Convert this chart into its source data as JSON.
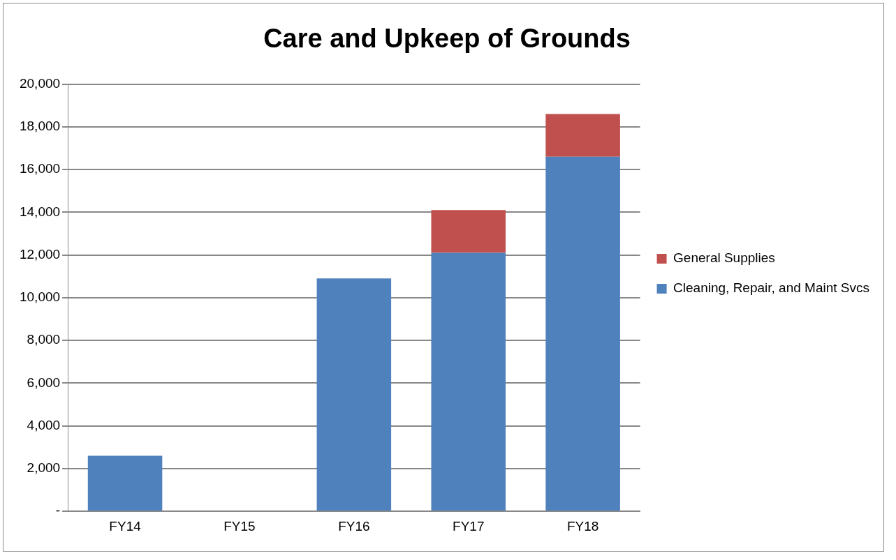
{
  "chart_data": {
    "type": "bar",
    "title": "Care and Upkeep of Grounds",
    "categories": [
      "FY14",
      "FY15",
      "FY16",
      "FY17",
      "FY18"
    ],
    "stacked": true,
    "series": [
      {
        "name": "Cleaning, Repair, and Maint Svcs",
        "color": "#4f81bd",
        "values": [
          2600,
          0,
          10900,
          12100,
          16600
        ]
      },
      {
        "name": "General Supplies",
        "color": "#c0504d",
        "values": [
          0,
          0,
          0,
          2000,
          2000
        ]
      }
    ],
    "ylim": [
      0,
      20000
    ],
    "yticks": [
      {
        "value": 0,
        "label": "-"
      },
      {
        "value": 2000,
        "label": "2,000"
      },
      {
        "value": 4000,
        "label": "4,000"
      },
      {
        "value": 6000,
        "label": "6,000"
      },
      {
        "value": 8000,
        "label": "8,000"
      },
      {
        "value": 10000,
        "label": "10,000"
      },
      {
        "value": 12000,
        "label": "12,000"
      },
      {
        "value": 14000,
        "label": "14,000"
      },
      {
        "value": 16000,
        "label": "16,000"
      },
      {
        "value": 18000,
        "label": "18,000"
      },
      {
        "value": 20000,
        "label": "20,000"
      }
    ],
    "grid": "y",
    "legend": "right"
  }
}
